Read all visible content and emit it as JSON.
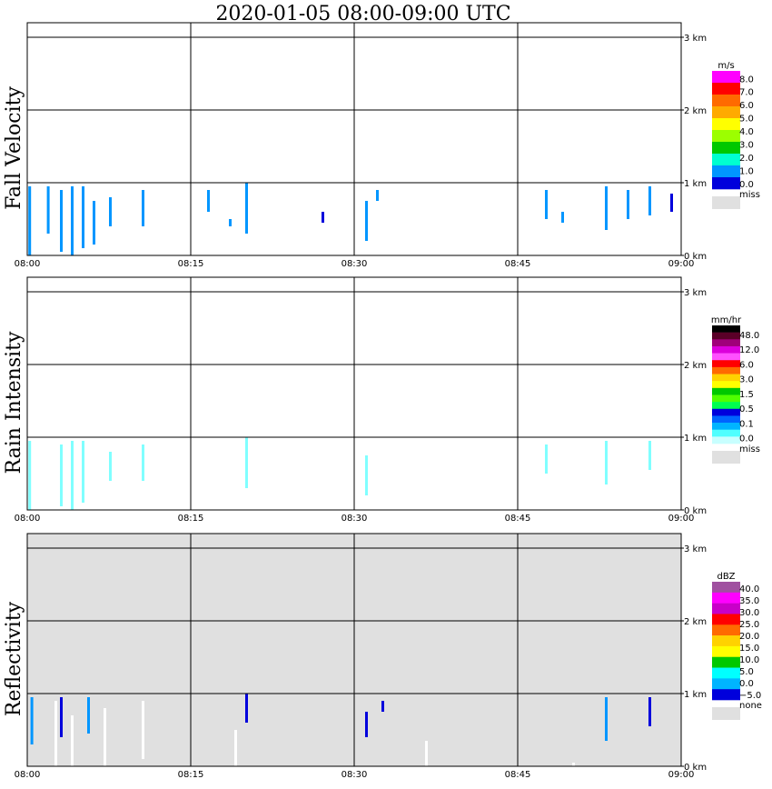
{
  "title": "2020-01-05   08:00-09:00 UTC",
  "time_ticks": [
    "08:00",
    "08:15",
    "08:30",
    "08:45",
    "09:00"
  ],
  "height_ticks": [
    "0 km",
    "1 km",
    "2 km",
    "3 km"
  ],
  "colors": {
    "background": "#ffffff",
    "missing": "#e0e0e0",
    "grid": "#000000"
  },
  "chart_data": [
    {
      "type": "heatmap",
      "panel": "Fall Velocity",
      "ylabel": "Fall Velocity",
      "x_range": [
        "08:00",
        "09:00"
      ],
      "y_range_km": [
        0,
        3.2
      ],
      "grid": true,
      "fill": "none",
      "colorbar": {
        "unit": "m/s",
        "labels": [
          "8.0",
          "7.0",
          "6.0",
          "5.0",
          "4.0",
          "3.0",
          "2.0",
          "1.0",
          "0.0"
        ],
        "colors": [
          "#ff00ff",
          "#ff0000",
          "#ff6a00",
          "#ffaa00",
          "#ffff00",
          "#9cff00",
          "#00c800",
          "#00ffd0",
          "#0096ff",
          "#0000dc"
        ],
        "missing_label": "miss"
      },
      "echoes": [
        {
          "t": 0.1,
          "h0": 0.0,
          "h1": 0.95,
          "c": "#0096ff"
        },
        {
          "t": 1.8,
          "h0": 0.3,
          "h1": 0.95,
          "c": "#0096ff"
        },
        {
          "t": 3.0,
          "h0": 0.05,
          "h1": 0.9,
          "c": "#0096ff"
        },
        {
          "t": 4.0,
          "h0": 0.0,
          "h1": 0.95,
          "c": "#0096ff"
        },
        {
          "t": 5.0,
          "h0": 0.1,
          "h1": 0.95,
          "c": "#0096ff"
        },
        {
          "t": 6.0,
          "h0": 0.15,
          "h1": 0.75,
          "c": "#0096ff"
        },
        {
          "t": 7.5,
          "h0": 0.4,
          "h1": 0.8,
          "c": "#0096ff"
        },
        {
          "t": 10.5,
          "h0": 0.4,
          "h1": 0.9,
          "c": "#0096ff"
        },
        {
          "t": 16.5,
          "h0": 0.6,
          "h1": 0.9,
          "c": "#0096ff"
        },
        {
          "t": 18.5,
          "h0": 0.4,
          "h1": 0.5,
          "c": "#0096ff"
        },
        {
          "t": 20.0,
          "h0": 0.3,
          "h1": 1.0,
          "c": "#0096ff"
        },
        {
          "t": 27.0,
          "h0": 0.45,
          "h1": 0.6,
          "c": "#0000dc"
        },
        {
          "t": 31.0,
          "h0": 0.2,
          "h1": 0.75,
          "c": "#0096ff"
        },
        {
          "t": 32.0,
          "h0": 0.75,
          "h1": 0.9,
          "c": "#0096ff"
        },
        {
          "t": 47.5,
          "h0": 0.5,
          "h1": 0.9,
          "c": "#0096ff"
        },
        {
          "t": 49.0,
          "h0": 0.45,
          "h1": 0.6,
          "c": "#0096ff"
        },
        {
          "t": 53.0,
          "h0": 0.35,
          "h1": 0.95,
          "c": "#0096ff"
        },
        {
          "t": 55.0,
          "h0": 0.5,
          "h1": 0.9,
          "c": "#0096ff"
        },
        {
          "t": 57.0,
          "h0": 0.55,
          "h1": 0.95,
          "c": "#0096ff"
        },
        {
          "t": 59.0,
          "h0": 0.6,
          "h1": 0.85,
          "c": "#0000dc"
        }
      ]
    },
    {
      "type": "heatmap",
      "panel": "Rain Intensity",
      "ylabel": "Rain Intensity",
      "x_range": [
        "08:00",
        "09:00"
      ],
      "y_range_km": [
        0,
        3.2
      ],
      "grid": true,
      "fill": "none",
      "colorbar": {
        "unit": "mm/hr",
        "labels": [
          "48.0",
          "12.0",
          "6.0",
          "3.0",
          "1.5",
          "0.5",
          "0.1",
          "0.0"
        ],
        "colors": [
          "#000000",
          "#5a0028",
          "#a0007a",
          "#dc00dc",
          "#ff50ff",
          "#ff0000",
          "#ff6a00",
          "#ffd200",
          "#ffff00",
          "#00c800",
          "#50ff00",
          "#00ff50",
          "#0000dc",
          "#0064ff",
          "#00b4ff",
          "#50ffff",
          "#c8ffff"
        ],
        "missing_label": "miss"
      },
      "echoes": [
        {
          "t": 0.1,
          "h0": 0.0,
          "h1": 0.95,
          "c": "#80ffff"
        },
        {
          "t": 3.0,
          "h0": 0.05,
          "h1": 0.9,
          "c": "#80ffff"
        },
        {
          "t": 4.0,
          "h0": 0.0,
          "h1": 0.95,
          "c": "#80ffff"
        },
        {
          "t": 5.0,
          "h0": 0.1,
          "h1": 0.95,
          "c": "#80ffff"
        },
        {
          "t": 7.5,
          "h0": 0.4,
          "h1": 0.8,
          "c": "#80ffff"
        },
        {
          "t": 10.5,
          "h0": 0.4,
          "h1": 0.9,
          "c": "#80ffff"
        },
        {
          "t": 20.0,
          "h0": 0.3,
          "h1": 1.0,
          "c": "#80ffff"
        },
        {
          "t": 31.0,
          "h0": 0.2,
          "h1": 0.75,
          "c": "#80ffff"
        },
        {
          "t": 47.5,
          "h0": 0.5,
          "h1": 0.9,
          "c": "#80ffff"
        },
        {
          "t": 53.0,
          "h0": 0.35,
          "h1": 0.95,
          "c": "#80ffff"
        },
        {
          "t": 57.0,
          "h0": 0.55,
          "h1": 0.95,
          "c": "#80ffff"
        }
      ]
    },
    {
      "type": "heatmap",
      "panel": "Reflectivity",
      "ylabel": "Reflectivity",
      "x_range": [
        "08:00",
        "09:00"
      ],
      "y_range_km": [
        0,
        3.2
      ],
      "grid": true,
      "fill": "#e0e0e0",
      "colorbar": {
        "unit": "dBZ",
        "labels": [
          "40.0",
          "35.0",
          "30.0",
          "25.0",
          "20.0",
          "15.0",
          "10.0",
          "5.0",
          "0.0",
          "−5.0"
        ],
        "colors": [
          "#a050a0",
          "#ff00ff",
          "#c800c8",
          "#ff0000",
          "#ff6a00",
          "#ffd200",
          "#ffff00",
          "#00c800",
          "#00ffff",
          "#00b4ff",
          "#0000dc"
        ],
        "missing_label": "none"
      },
      "echoes": [
        {
          "t": 0.3,
          "h0": 0.3,
          "h1": 0.95,
          "c": "#0096ff"
        },
        {
          "t": 2.5,
          "h0": 0.0,
          "h1": 0.9,
          "c": "#ffffff"
        },
        {
          "t": 3.0,
          "h0": 0.4,
          "h1": 0.95,
          "c": "#0000dc"
        },
        {
          "t": 4.0,
          "h0": 0.0,
          "h1": 0.7,
          "c": "#ffffff"
        },
        {
          "t": 5.5,
          "h0": 0.45,
          "h1": 0.95,
          "c": "#0096ff"
        },
        {
          "t": 7.0,
          "h0": 0.0,
          "h1": 0.8,
          "c": "#ffffff"
        },
        {
          "t": 10.5,
          "h0": 0.1,
          "h1": 0.9,
          "c": "#ffffff"
        },
        {
          "t": 20.0,
          "h0": 0.6,
          "h1": 1.0,
          "c": "#0000dc"
        },
        {
          "t": 19.0,
          "h0": 0.0,
          "h1": 0.5,
          "c": "#ffffff"
        },
        {
          "t": 31.0,
          "h0": 0.4,
          "h1": 0.75,
          "c": "#0000dc"
        },
        {
          "t": 32.5,
          "h0": 0.75,
          "h1": 0.9,
          "c": "#0000dc"
        },
        {
          "t": 36.5,
          "h0": 0.0,
          "h1": 0.35,
          "c": "#ffffff"
        },
        {
          "t": 53.0,
          "h0": 0.35,
          "h1": 0.95,
          "c": "#0096ff"
        },
        {
          "t": 57.0,
          "h0": 0.55,
          "h1": 0.95,
          "c": "#0000dc"
        },
        {
          "t": 50.0,
          "h0": 0.0,
          "h1": 0.05,
          "c": "#ffffff"
        }
      ]
    }
  ]
}
